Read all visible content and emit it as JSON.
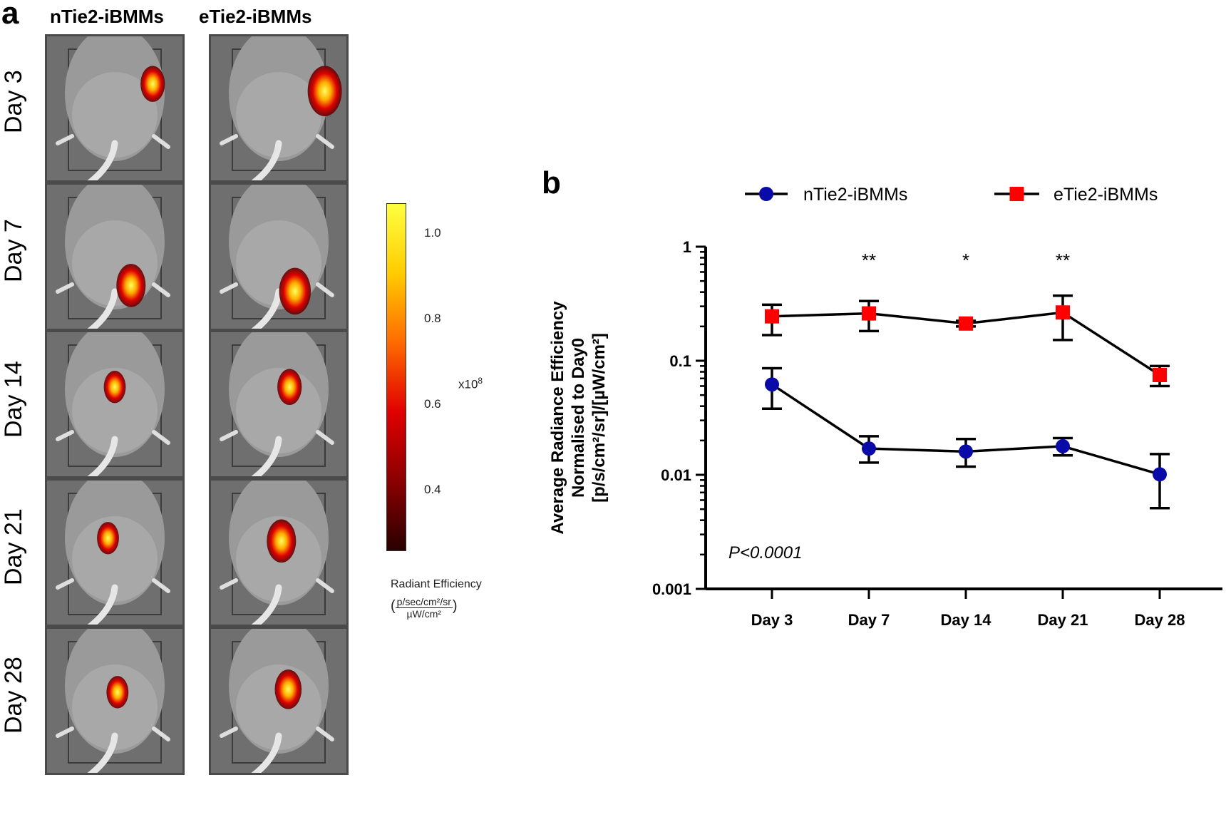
{
  "panel_a": {
    "letter": "a",
    "columns": [
      "nTie2-iBMMs",
      "eTie2-iBMMs"
    ],
    "rows": [
      "Day 3",
      "Day 7",
      "Day 14",
      "Day 21",
      "Day 28"
    ],
    "colorbar": {
      "ticks": [
        "1.0",
        "0.8",
        "0.6",
        "0.4"
      ],
      "tick_values": [
        1.0,
        0.8,
        0.6,
        0.4
      ],
      "range": [
        0.22,
        1.06
      ],
      "multiplier": "x10",
      "multiplier_exp": "8",
      "caption_line1": "Radiant Efficiency",
      "caption_num": "p/sec/cm²/sr",
      "caption_den": "µW/cm²",
      "colors": [
        "#2a0000",
        "#8b0000",
        "#e00000",
        "#ff6a00",
        "#ffcc00",
        "#ffff40"
      ]
    }
  },
  "panel_b": {
    "letter": "b",
    "pvalue": "P<0.0001"
  },
  "chart_data": {
    "type": "line",
    "categories": [
      "Day 3",
      "Day 7",
      "Day 14",
      "Day 21",
      "Day 28"
    ],
    "yscale": "log",
    "ylim": [
      0.001,
      1
    ],
    "yticks": [
      0.001,
      0.01,
      0.1,
      1
    ],
    "ytick_labels": [
      "0.001",
      "0.01",
      "0.1",
      "1"
    ],
    "ylabel_line1": "Average Radiance Efficiency",
    "ylabel_line2": "Normalised to Day0",
    "ylabel_line3": "[p/s/cm²/sr]/[µW/cm²]",
    "legend_position": "top",
    "series": [
      {
        "name": "nTie2-iBMMs",
        "color": "#0a0aa8",
        "marker": "circle",
        "values": [
          0.062,
          0.017,
          0.016,
          0.0178,
          0.0101
        ],
        "err_low": [
          0.038,
          0.0128,
          0.0118,
          0.0148,
          0.0051
        ],
        "err_high": [
          0.086,
          0.0218,
          0.0206,
          0.021,
          0.0152
        ]
      },
      {
        "name": "eTie2-iBMMs",
        "color": "#ff0000",
        "marker": "square",
        "values": [
          0.245,
          0.26,
          0.212,
          0.265,
          0.075
        ],
        "err_low": [
          0.168,
          0.182,
          0.2,
          0.152,
          0.06
        ],
        "err_high": [
          0.31,
          0.334,
          0.224,
          0.372,
          0.09
        ]
      }
    ],
    "significance": [
      {
        "category": "Day 7",
        "label": "**"
      },
      {
        "category": "Day 14",
        "label": "*"
      },
      {
        "category": "Day 21",
        "label": "**"
      }
    ]
  }
}
